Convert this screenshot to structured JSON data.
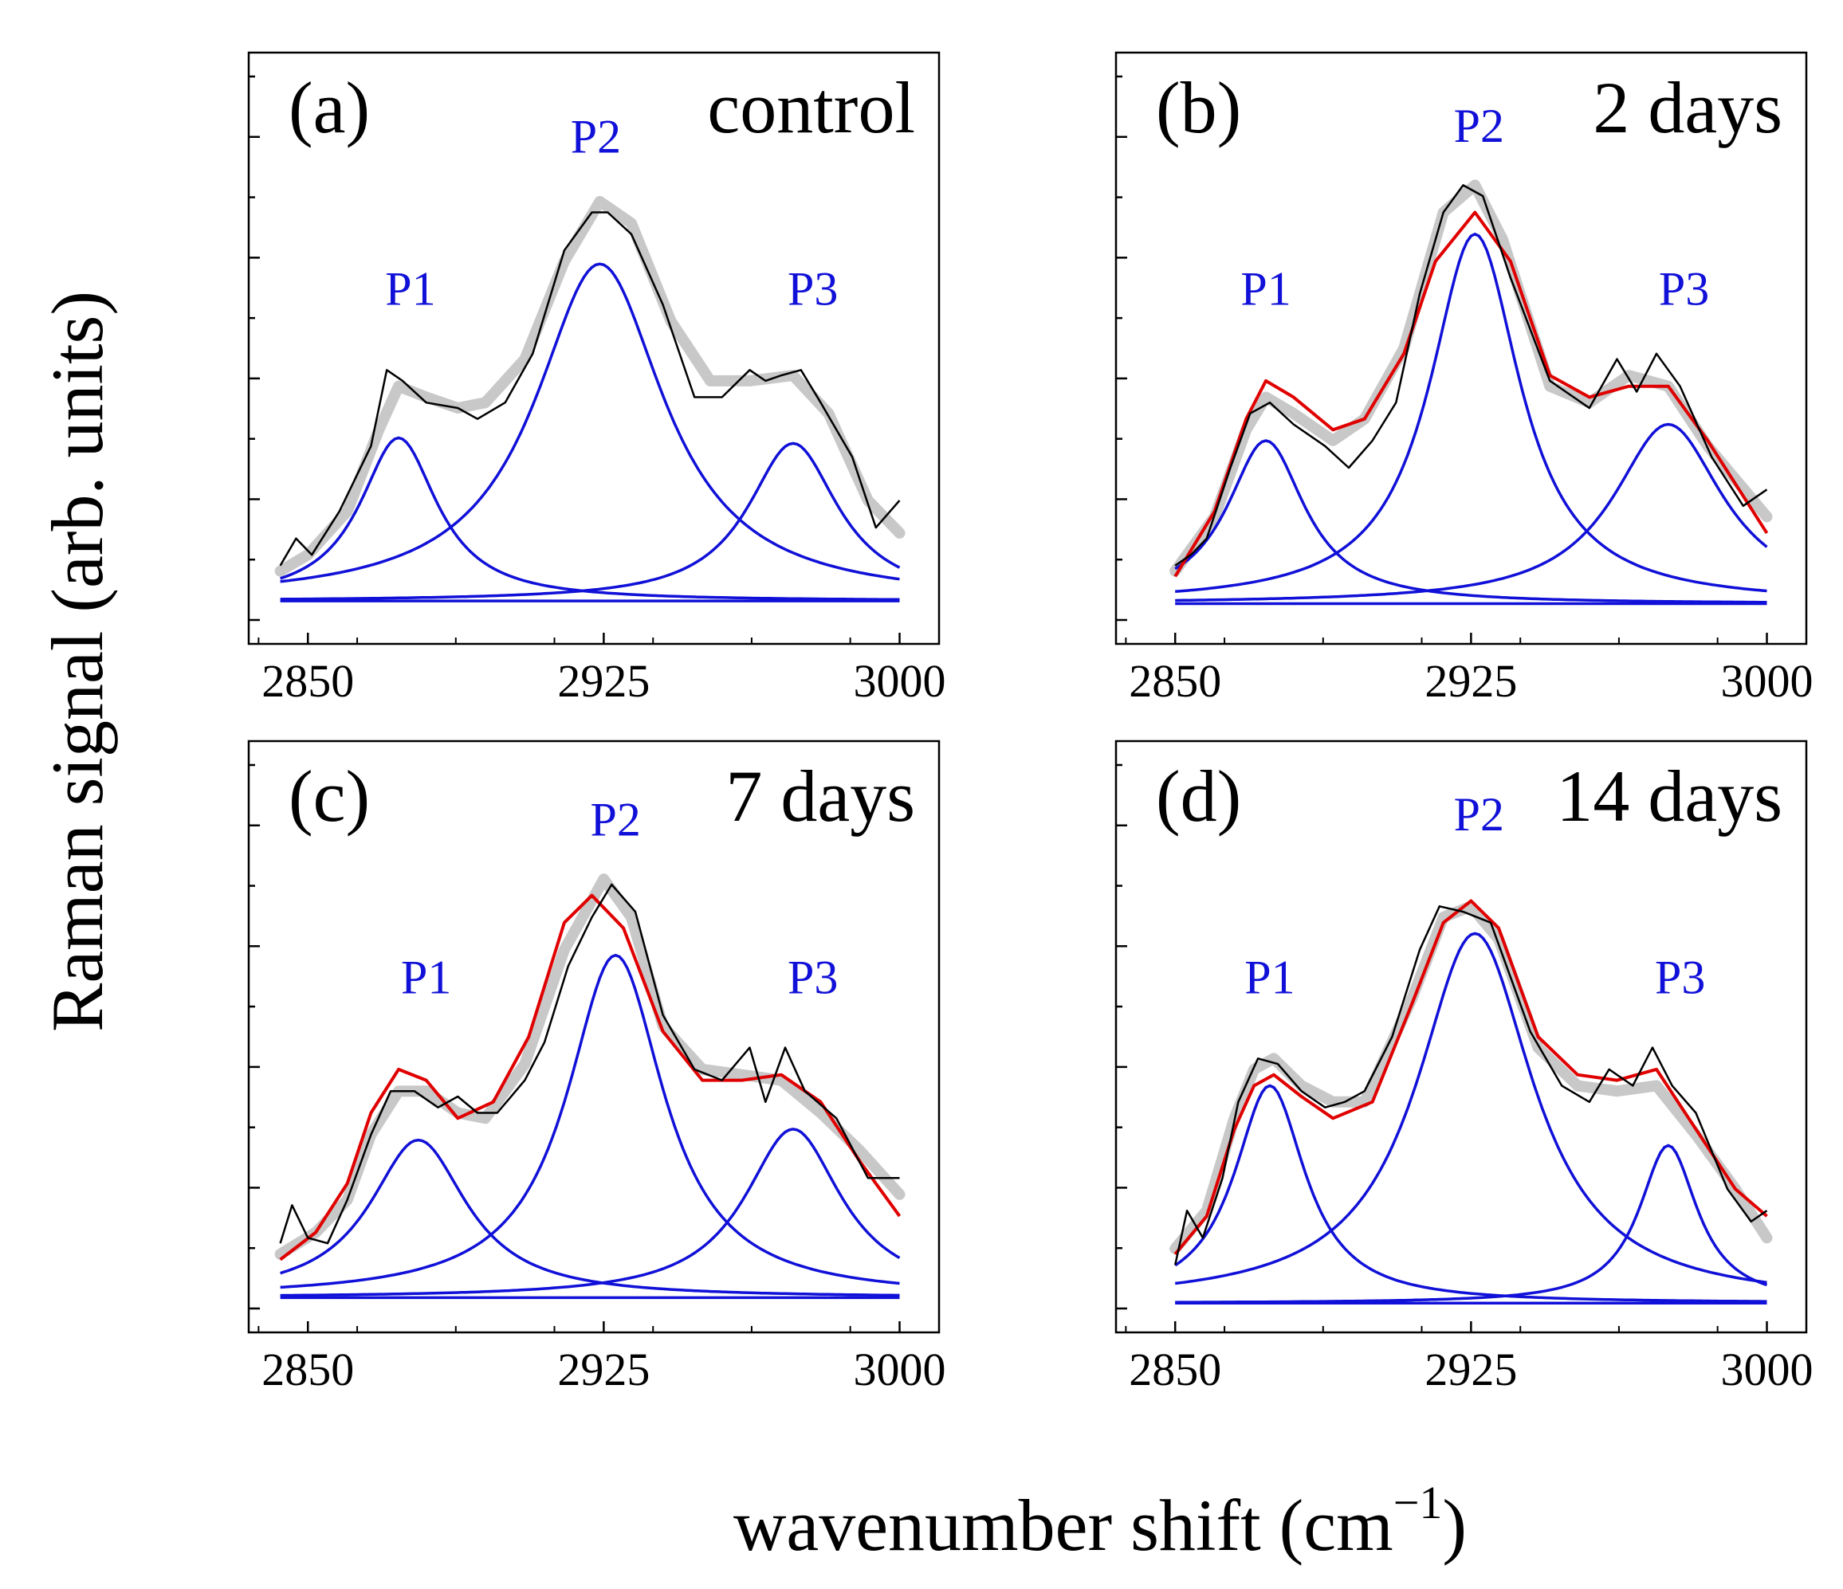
{
  "figure": {
    "ylabel": "Raman signal (arb. units)",
    "xlabel": "wavenumber shift (cm",
    "xlabel_sup": "−1",
    "xlabel_close": ")"
  },
  "colors": {
    "measured": "#000000",
    "smoothed": "#c8c8c8",
    "components": "#1010d8",
    "envelope": "#e00000"
  },
  "chart_data": [
    {
      "type": "line",
      "panel": "(a)",
      "condition": "control",
      "xlim": [
        2835,
        3010
      ],
      "ylim": [
        0,
        1
      ],
      "xticks": [
        2850,
        2925,
        3000
      ],
      "xtick_labels": [
        "2850",
        "2925",
        "3000"
      ],
      "peak_labels": [
        {
          "text": "P1",
          "x": 2876,
          "y": 0.58
        },
        {
          "text": "P2",
          "x": 2923,
          "y": 0.86
        },
        {
          "text": "P3",
          "x": 2978,
          "y": 0.58
        }
      ],
      "baseline": [
        [
          2843,
          0.035
        ],
        [
          3000,
          0.035
        ]
      ],
      "peaks": [
        {
          "name": "P1",
          "center": 2873,
          "amp": 0.3,
          "hwhm": 12
        },
        {
          "name": "P2",
          "center": 2924,
          "amp": 0.62,
          "hwhm": 20
        },
        {
          "name": "P3",
          "center": 2973,
          "amp": 0.29,
          "hwhm": 14
        }
      ],
      "envelope_shown": false,
      "smoothed": [
        [
          2843,
          0.09
        ],
        [
          2850,
          0.12
        ],
        [
          2860,
          0.2
        ],
        [
          2868,
          0.35
        ],
        [
          2873,
          0.43
        ],
        [
          2880,
          0.41
        ],
        [
          2888,
          0.39
        ],
        [
          2895,
          0.4
        ],
        [
          2905,
          0.48
        ],
        [
          2915,
          0.66
        ],
        [
          2924,
          0.77
        ],
        [
          2932,
          0.73
        ],
        [
          2942,
          0.55
        ],
        [
          2952,
          0.44
        ],
        [
          2962,
          0.44
        ],
        [
          2973,
          0.45
        ],
        [
          2982,
          0.38
        ],
        [
          2992,
          0.22
        ],
        [
          3000,
          0.16
        ]
      ],
      "measured": [
        [
          2843,
          0.1
        ],
        [
          2847,
          0.15
        ],
        [
          2851,
          0.12
        ],
        [
          2858,
          0.2
        ],
        [
          2866,
          0.32
        ],
        [
          2870,
          0.46
        ],
        [
          2874,
          0.44
        ],
        [
          2880,
          0.4
        ],
        [
          2888,
          0.39
        ],
        [
          2893,
          0.37
        ],
        [
          2900,
          0.4
        ],
        [
          2907,
          0.49
        ],
        [
          2915,
          0.68
        ],
        [
          2922,
          0.75
        ],
        [
          2926,
          0.75
        ],
        [
          2932,
          0.71
        ],
        [
          2940,
          0.58
        ],
        [
          2948,
          0.41
        ],
        [
          2955,
          0.41
        ],
        [
          2962,
          0.46
        ],
        [
          2966,
          0.44
        ],
        [
          2970,
          0.45
        ],
        [
          2975,
          0.46
        ],
        [
          2980,
          0.4
        ],
        [
          2988,
          0.3
        ],
        [
          2994,
          0.17
        ],
        [
          3000,
          0.22
        ]
      ]
    },
    {
      "type": "line",
      "panel": "(b)",
      "condition": "2 days",
      "xlim": [
        2835,
        3010
      ],
      "ylim": [
        0,
        1
      ],
      "xticks": [
        2850,
        2925,
        3000
      ],
      "xtick_labels": [
        "2850",
        "2925",
        "3000"
      ],
      "peak_labels": [
        {
          "text": "P1",
          "x": 2873,
          "y": 0.58
        },
        {
          "text": "P2",
          "x": 2927,
          "y": 0.88
        },
        {
          "text": "P3",
          "x": 2979,
          "y": 0.58
        }
      ],
      "baseline": [
        [
          2850,
          0.03
        ],
        [
          3000,
          0.03
        ]
      ],
      "peaks": [
        {
          "name": "P1",
          "center": 2873,
          "amp": 0.3,
          "hwhm": 12
        },
        {
          "name": "P2",
          "center": 2926,
          "amp": 0.68,
          "hwhm": 14
        },
        {
          "name": "P3",
          "center": 2975,
          "amp": 0.33,
          "hwhm": 17
        }
      ],
      "envelope_shown": true,
      "envelope": [
        [
          2850,
          0.08
        ],
        [
          2860,
          0.2
        ],
        [
          2868,
          0.37
        ],
        [
          2873,
          0.44
        ],
        [
          2880,
          0.41
        ],
        [
          2890,
          0.35
        ],
        [
          2898,
          0.37
        ],
        [
          2908,
          0.49
        ],
        [
          2916,
          0.66
        ],
        [
          2926,
          0.75
        ],
        [
          2935,
          0.66
        ],
        [
          2945,
          0.45
        ],
        [
          2955,
          0.41
        ],
        [
          2965,
          0.43
        ],
        [
          2975,
          0.43
        ],
        [
          2985,
          0.33
        ],
        [
          3000,
          0.16
        ]
      ],
      "smoothed": [
        [
          2850,
          0.09
        ],
        [
          2860,
          0.19
        ],
        [
          2868,
          0.35
        ],
        [
          2873,
          0.41
        ],
        [
          2880,
          0.38
        ],
        [
          2890,
          0.33
        ],
        [
          2898,
          0.37
        ],
        [
          2908,
          0.5
        ],
        [
          2918,
          0.75
        ],
        [
          2926,
          0.8
        ],
        [
          2933,
          0.7
        ],
        [
          2945,
          0.43
        ],
        [
          2955,
          0.4
        ],
        [
          2965,
          0.45
        ],
        [
          2975,
          0.43
        ],
        [
          2985,
          0.32
        ],
        [
          3000,
          0.19
        ]
      ],
      "measured": [
        [
          2850,
          0.1
        ],
        [
          2854,
          0.12
        ],
        [
          2858,
          0.15
        ],
        [
          2864,
          0.28
        ],
        [
          2869,
          0.38
        ],
        [
          2874,
          0.4
        ],
        [
          2880,
          0.36
        ],
        [
          2888,
          0.32
        ],
        [
          2894,
          0.28
        ],
        [
          2900,
          0.33
        ],
        [
          2906,
          0.4
        ],
        [
          2912,
          0.6
        ],
        [
          2918,
          0.75
        ],
        [
          2923,
          0.8
        ],
        [
          2928,
          0.78
        ],
        [
          2935,
          0.63
        ],
        [
          2945,
          0.44
        ],
        [
          2955,
          0.39
        ],
        [
          2962,
          0.48
        ],
        [
          2967,
          0.42
        ],
        [
          2972,
          0.49
        ],
        [
          2978,
          0.43
        ],
        [
          2986,
          0.3
        ],
        [
          2994,
          0.21
        ],
        [
          3000,
          0.24
        ]
      ]
    },
    {
      "type": "line",
      "panel": "(c)",
      "condition": "7 days",
      "xlim": [
        2835,
        3010
      ],
      "ylim": [
        0,
        1
      ],
      "xticks": [
        2850,
        2925,
        3000
      ],
      "xtick_labels": [
        "2850",
        "2925",
        "3000"
      ],
      "peak_labels": [
        {
          "text": "P1",
          "x": 2880,
          "y": 0.58
        },
        {
          "text": "P2",
          "x": 2928,
          "y": 0.87
        },
        {
          "text": "P3",
          "x": 2978,
          "y": 0.58
        }
      ],
      "baseline": [
        [
          2843,
          0.02
        ],
        [
          3000,
          0.02
        ]
      ],
      "peaks": [
        {
          "name": "P1",
          "center": 2878,
          "amp": 0.29,
          "hwhm": 15
        },
        {
          "name": "P2",
          "center": 2928,
          "amp": 0.63,
          "hwhm": 15
        },
        {
          "name": "P3",
          "center": 2973,
          "amp": 0.31,
          "hwhm": 15
        }
      ],
      "envelope_shown": true,
      "envelope": [
        [
          2843,
          0.09
        ],
        [
          2852,
          0.14
        ],
        [
          2860,
          0.23
        ],
        [
          2866,
          0.36
        ],
        [
          2873,
          0.44
        ],
        [
          2880,
          0.42
        ],
        [
          2888,
          0.35
        ],
        [
          2897,
          0.38
        ],
        [
          2906,
          0.5
        ],
        [
          2915,
          0.71
        ],
        [
          2922,
          0.76
        ],
        [
          2930,
          0.7
        ],
        [
          2940,
          0.51
        ],
        [
          2950,
          0.42
        ],
        [
          2960,
          0.42
        ],
        [
          2970,
          0.43
        ],
        [
          2980,
          0.38
        ],
        [
          2990,
          0.27
        ],
        [
          3000,
          0.17
        ]
      ],
      "smoothed": [
        [
          2843,
          0.1
        ],
        [
          2852,
          0.14
        ],
        [
          2860,
          0.2
        ],
        [
          2866,
          0.32
        ],
        [
          2873,
          0.4
        ],
        [
          2880,
          0.4
        ],
        [
          2888,
          0.36
        ],
        [
          2895,
          0.35
        ],
        [
          2905,
          0.45
        ],
        [
          2915,
          0.66
        ],
        [
          2925,
          0.79
        ],
        [
          2932,
          0.72
        ],
        [
          2940,
          0.52
        ],
        [
          2950,
          0.44
        ],
        [
          2960,
          0.43
        ],
        [
          2970,
          0.42
        ],
        [
          2980,
          0.36
        ],
        [
          2990,
          0.29
        ],
        [
          3000,
          0.21
        ]
      ],
      "measured": [
        [
          2843,
          0.12
        ],
        [
          2846,
          0.19
        ],
        [
          2850,
          0.13
        ],
        [
          2855,
          0.12
        ],
        [
          2860,
          0.2
        ],
        [
          2866,
          0.32
        ],
        [
          2871,
          0.4
        ],
        [
          2877,
          0.4
        ],
        [
          2883,
          0.37
        ],
        [
          2888,
          0.39
        ],
        [
          2893,
          0.36
        ],
        [
          2898,
          0.36
        ],
        [
          2905,
          0.42
        ],
        [
          2910,
          0.49
        ],
        [
          2916,
          0.63
        ],
        [
          2922,
          0.72
        ],
        [
          2927,
          0.78
        ],
        [
          2933,
          0.73
        ],
        [
          2940,
          0.54
        ],
        [
          2948,
          0.44
        ],
        [
          2955,
          0.42
        ],
        [
          2962,
          0.48
        ],
        [
          2966,
          0.38
        ],
        [
          2971,
          0.48
        ],
        [
          2976,
          0.4
        ],
        [
          2984,
          0.35
        ],
        [
          2992,
          0.24
        ],
        [
          3000,
          0.24
        ]
      ]
    },
    {
      "type": "line",
      "panel": "(d)",
      "condition": "14 days",
      "xlim": [
        2835,
        3010
      ],
      "ylim": [
        0,
        1
      ],
      "xticks": [
        2850,
        2925,
        3000
      ],
      "xtick_labels": [
        "2850",
        "2925",
        "3000"
      ],
      "peak_labels": [
        {
          "text": "P1",
          "x": 2874,
          "y": 0.58
        },
        {
          "text": "P2",
          "x": 2927,
          "y": 0.88
        },
        {
          "text": "P3",
          "x": 2978,
          "y": 0.58
        }
      ],
      "baseline": [
        [
          2850,
          0.01
        ],
        [
          3000,
          0.01
        ]
      ],
      "peaks": [
        {
          "name": "P1",
          "center": 2874,
          "amp": 0.4,
          "hwhm": 11
        },
        {
          "name": "P2",
          "center": 2926,
          "amp": 0.68,
          "hwhm": 18
        },
        {
          "name": "P3",
          "center": 2975,
          "amp": 0.29,
          "hwhm": 9
        }
      ],
      "envelope_shown": true,
      "envelope": [
        [
          2850,
          0.1
        ],
        [
          2858,
          0.17
        ],
        [
          2865,
          0.33
        ],
        [
          2870,
          0.41
        ],
        [
          2875,
          0.43
        ],
        [
          2882,
          0.39
        ],
        [
          2890,
          0.35
        ],
        [
          2900,
          0.38
        ],
        [
          2910,
          0.56
        ],
        [
          2918,
          0.71
        ],
        [
          2925,
          0.75
        ],
        [
          2932,
          0.7
        ],
        [
          2942,
          0.5
        ],
        [
          2952,
          0.43
        ],
        [
          2962,
          0.42
        ],
        [
          2972,
          0.44
        ],
        [
          2982,
          0.33
        ],
        [
          2992,
          0.22
        ],
        [
          3000,
          0.17
        ]
      ],
      "smoothed": [
        [
          2850,
          0.11
        ],
        [
          2858,
          0.18
        ],
        [
          2865,
          0.35
        ],
        [
          2870,
          0.44
        ],
        [
          2875,
          0.46
        ],
        [
          2882,
          0.41
        ],
        [
          2890,
          0.38
        ],
        [
          2898,
          0.38
        ],
        [
          2910,
          0.57
        ],
        [
          2918,
          0.72
        ],
        [
          2925,
          0.74
        ],
        [
          2932,
          0.68
        ],
        [
          2942,
          0.48
        ],
        [
          2952,
          0.41
        ],
        [
          2962,
          0.4
        ],
        [
          2972,
          0.41
        ],
        [
          2982,
          0.32
        ],
        [
          2992,
          0.22
        ],
        [
          3000,
          0.13
        ]
      ],
      "measured": [
        [
          2850,
          0.08
        ],
        [
          2853,
          0.18
        ],
        [
          2857,
          0.13
        ],
        [
          2862,
          0.24
        ],
        [
          2866,
          0.38
        ],
        [
          2871,
          0.46
        ],
        [
          2876,
          0.45
        ],
        [
          2882,
          0.4
        ],
        [
          2888,
          0.37
        ],
        [
          2893,
          0.38
        ],
        [
          2898,
          0.4
        ],
        [
          2905,
          0.5
        ],
        [
          2912,
          0.66
        ],
        [
          2917,
          0.74
        ],
        [
          2923,
          0.73
        ],
        [
          2930,
          0.71
        ],
        [
          2940,
          0.51
        ],
        [
          2948,
          0.41
        ],
        [
          2955,
          0.38
        ],
        [
          2960,
          0.44
        ],
        [
          2966,
          0.41
        ],
        [
          2971,
          0.48
        ],
        [
          2976,
          0.41
        ],
        [
          2982,
          0.36
        ],
        [
          2990,
          0.22
        ],
        [
          2996,
          0.16
        ],
        [
          3000,
          0.18
        ]
      ]
    }
  ]
}
